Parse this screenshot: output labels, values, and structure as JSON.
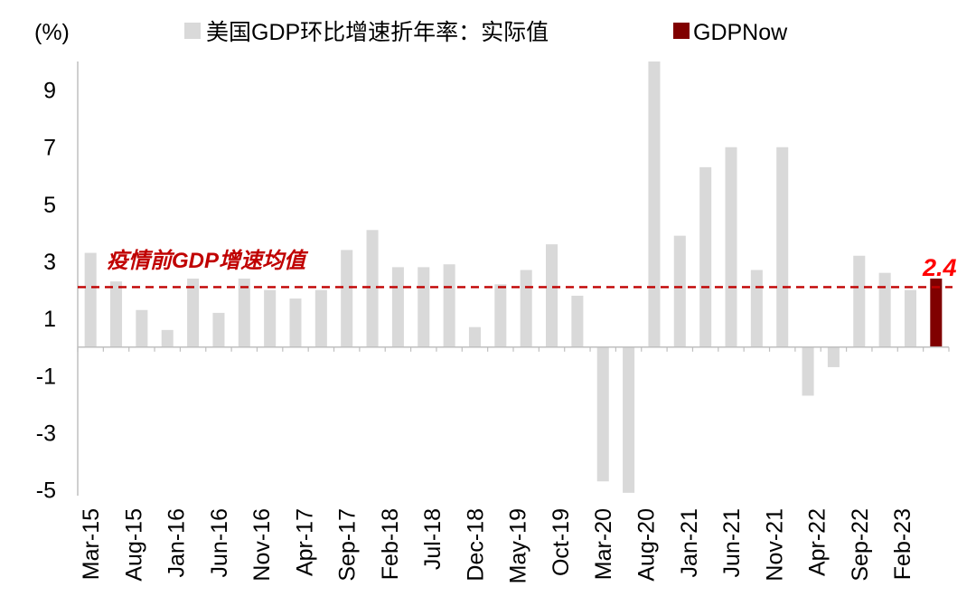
{
  "chart_data": {
    "type": "bar",
    "title": "",
    "ylabel": "(%)",
    "xlabel": "",
    "ylim": [
      -5.2,
      10
    ],
    "y_ticks": [
      9,
      7,
      5,
      3,
      1,
      -1,
      -3,
      -5
    ],
    "grid": false,
    "legend_position": "top",
    "series": [
      {
        "name": "美国GDP环比增速折年率：实际值",
        "color": "#d9d9d9",
        "values": [
          3.3,
          2.3,
          1.3,
          0.6,
          2.4,
          1.2,
          2.4,
          2.0,
          1.7,
          2.0,
          3.4,
          4.1,
          2.8,
          2.8,
          2.9,
          0.7,
          2.2,
          2.7,
          3.6,
          1.8,
          -4.7,
          -5.1,
          10.0,
          3.9,
          6.3,
          7.0,
          2.7,
          7.0,
          -1.7,
          -0.7,
          3.2,
          2.6,
          2.0,
          null
        ]
      },
      {
        "name": "GDPNow",
        "color": "#800000",
        "values": [
          null,
          null,
          null,
          null,
          null,
          null,
          null,
          null,
          null,
          null,
          null,
          null,
          null,
          null,
          null,
          null,
          null,
          null,
          null,
          null,
          null,
          null,
          null,
          null,
          null,
          null,
          null,
          null,
          null,
          null,
          null,
          null,
          null,
          2.4
        ]
      }
    ],
    "x_tick_labels": [
      "Mar-15",
      "Aug-15",
      "Jan-16",
      "Jun-16",
      "Nov-16",
      "Apr-17",
      "Sep-17",
      "Feb-18",
      "Jul-18",
      "Dec-18",
      "May-19",
      "Oct-19",
      "Mar-20",
      "Aug-20",
      "Jan-21",
      "Jun-21",
      "Nov-21",
      "Apr-22",
      "Sep-22",
      "Feb-23"
    ],
    "reference_line": {
      "label": "疫情前GDP增速均值",
      "value": 2.1,
      "color": "#c00000"
    },
    "annotation": {
      "text": "2.4",
      "color": "#ff0000"
    }
  }
}
